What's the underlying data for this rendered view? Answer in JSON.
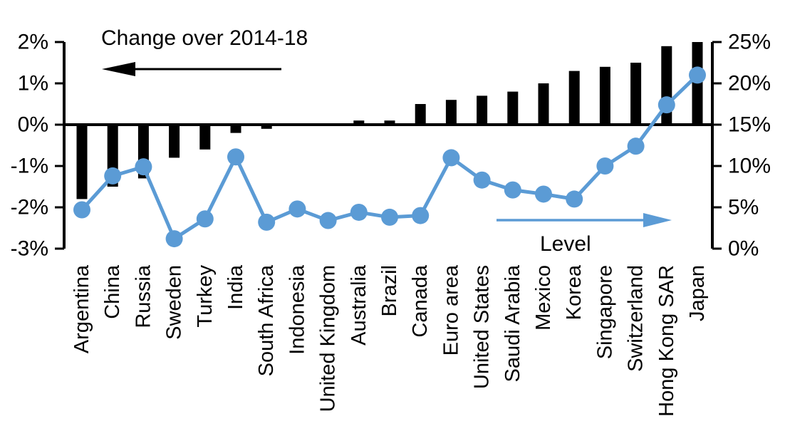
{
  "chart_data": {
    "type": "combo-bar-line",
    "categories": [
      "Argentina",
      "China",
      "Russia",
      "Sweden",
      "Turkey",
      "India",
      "South Africa",
      "Indonesia",
      "United Kingdom",
      "Australia",
      "Brazil",
      "Canada",
      "Euro area",
      "United States",
      "Saudi Arabia",
      "Mexico",
      "Korea",
      "Singapore",
      "Switzerland",
      "Hong Kong SAR",
      "Japan"
    ],
    "series": [
      {
        "name": "Change over 2014-18",
        "type": "bar",
        "axis": "left",
        "unit": "%",
        "values": [
          -1.8,
          -1.5,
          -1.3,
          -0.8,
          -0.6,
          -0.2,
          -0.1,
          0,
          0,
          0.1,
          0.1,
          0.5,
          0.6,
          0.7,
          0.8,
          1.0,
          1.3,
          1.4,
          1.5,
          1.9,
          2.0
        ]
      },
      {
        "name": "Level",
        "type": "line",
        "axis": "right",
        "unit": "%",
        "values": [
          4.7,
          8.8,
          9.9,
          1.2,
          3.6,
          11.1,
          3.2,
          4.8,
          3.4,
          4.4,
          3.8,
          4.0,
          11.0,
          8.3,
          7.1,
          6.6,
          6.0,
          10.0,
          12.4,
          17.4,
          21.0
        ]
      }
    ],
    "left_axis": {
      "min": -3,
      "max": 2,
      "tick_labels": [
        "2%",
        "1%",
        "0%",
        "-1%",
        "-2%",
        "-3%"
      ]
    },
    "right_axis": {
      "min": 0,
      "max": 25,
      "tick_labels": [
        "25%",
        "20%",
        "15%",
        "10%",
        "5%",
        "0%"
      ]
    },
    "grid": false,
    "legend_position": "in-plot-annotations"
  },
  "annotations": {
    "change_label": "Change over 2014-18",
    "level_label": "Level"
  },
  "colors": {
    "bar": "#000000",
    "line": "#5b9bd5",
    "axis": "#000000",
    "background": "#ffffff"
  }
}
